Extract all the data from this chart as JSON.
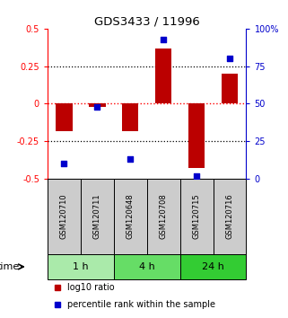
{
  "title": "GDS3433 / 11996",
  "samples": [
    "GSM120710",
    "GSM120711",
    "GSM120648",
    "GSM120708",
    "GSM120715",
    "GSM120716"
  ],
  "log10_ratio": [
    -0.18,
    -0.02,
    -0.18,
    0.37,
    -0.43,
    0.2
  ],
  "percentile_rank": [
    10,
    48,
    13,
    93,
    2,
    80
  ],
  "groups": [
    {
      "label": "1 h",
      "start": 0,
      "end": 2,
      "color": "#aaeaaa"
    },
    {
      "label": "4 h",
      "start": 2,
      "end": 4,
      "color": "#66dd66"
    },
    {
      "label": "24 h",
      "start": 4,
      "end": 6,
      "color": "#33cc33"
    }
  ],
  "bar_color": "#bb0000",
  "dot_color": "#0000cc",
  "ylim_left": [
    -0.5,
    0.5
  ],
  "ylim_right": [
    0,
    100
  ],
  "yticks_left": [
    -0.5,
    -0.25,
    0,
    0.25,
    0.5
  ],
  "yticks_right": [
    0,
    25,
    50,
    75,
    100
  ],
  "ytick_labels_right": [
    "0",
    "25",
    "50",
    "75",
    "100%"
  ],
  "background_color": "#ffffff",
  "sample_box_color": "#cccccc",
  "time_label": "time"
}
